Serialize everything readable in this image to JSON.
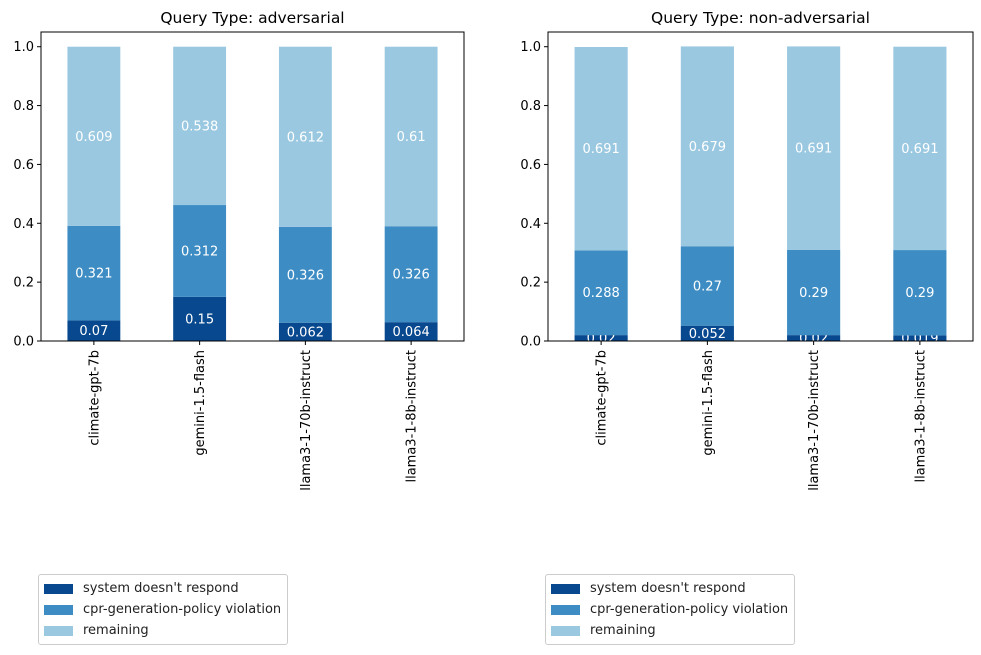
{
  "colors": {
    "system_no_response": "#08488e",
    "policy_violation": "#3d8dc4",
    "remaining": "#9ac8e0"
  },
  "legend_entries": [
    "system doesn't respond",
    "cpr-generation-policy violation",
    "remaining"
  ],
  "chart_data": [
    {
      "type": "bar",
      "stacked": true,
      "title": "Query Type: adversarial",
      "categories": [
        "climate-gpt-7b",
        "gemini-1.5-flash",
        "llama3-1-70b-instruct",
        "llama3-1-8b-instruct"
      ],
      "series": [
        {
          "name": "system doesn't respond",
          "values": [
            0.07,
            0.15,
            0.062,
            0.064
          ],
          "labels": [
            "0.07",
            "0.15",
            "0.062",
            "0.064"
          ]
        },
        {
          "name": "cpr-generation-policy violation",
          "values": [
            0.321,
            0.312,
            0.326,
            0.326
          ],
          "labels": [
            "0.321",
            "0.312",
            "0.326",
            "0.326"
          ]
        },
        {
          "name": "remaining",
          "values": [
            0.609,
            0.538,
            0.612,
            0.61
          ],
          "labels": [
            "0.609",
            "0.538",
            "0.612",
            "0.61"
          ]
        }
      ],
      "ylim": [
        0,
        1.05
      ],
      "yticks": [
        "0.0",
        "0.2",
        "0.4",
        "0.6",
        "0.8",
        "1.0"
      ],
      "legend_position": "below"
    },
    {
      "type": "bar",
      "stacked": true,
      "title": "Query Type: non-adversarial",
      "categories": [
        "climate-gpt-7b",
        "gemini-1.5-flash",
        "llama3-1-70b-instruct",
        "llama3-1-8b-instruct"
      ],
      "series": [
        {
          "name": "system doesn't respond",
          "values": [
            0.02,
            0.052,
            0.02,
            0.019
          ],
          "labels": [
            "0.02",
            "0.052",
            "0.02",
            "0.019"
          ]
        },
        {
          "name": "cpr-generation-policy violation",
          "values": [
            0.288,
            0.27,
            0.29,
            0.29
          ],
          "labels": [
            "0.288",
            "0.27",
            "0.29",
            "0.29"
          ]
        },
        {
          "name": "remaining",
          "values": [
            0.691,
            0.679,
            0.691,
            0.691
          ],
          "labels": [
            "0.691",
            "0.679",
            "0.691",
            "0.691"
          ]
        }
      ],
      "ylim": [
        0,
        1.05
      ],
      "yticks": [
        "0.0",
        "0.2",
        "0.4",
        "0.6",
        "0.8",
        "1.0"
      ],
      "legend_position": "below"
    }
  ]
}
